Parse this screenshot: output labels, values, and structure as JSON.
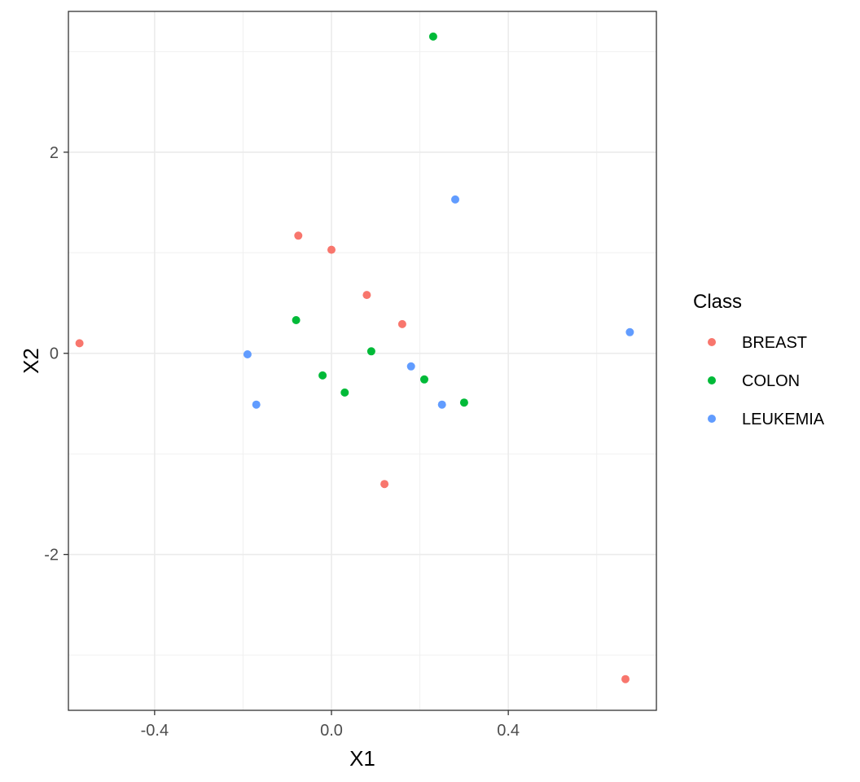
{
  "chart_data": {
    "type": "scatter",
    "title": "",
    "xlabel": "X1",
    "ylabel": "X2",
    "xlim": [
      -0.595,
      0.735
    ],
    "ylim": [
      -3.55,
      3.4
    ],
    "x_ticks": [
      -0.4,
      0.0,
      0.4
    ],
    "x_tick_labels": [
      "-0.4",
      "0.0",
      "0.4"
    ],
    "y_ticks": [
      -2,
      0,
      2
    ],
    "y_tick_labels": [
      "-2",
      "0",
      "2"
    ],
    "x_minor_ticks": [
      -0.6,
      -0.2,
      0.2,
      0.6
    ],
    "y_minor_ticks": [
      -3,
      -1,
      1,
      3
    ],
    "grid": true,
    "legend": {
      "title": "Class",
      "position": "right"
    },
    "colors": {
      "BREAST": "#F8766D",
      "COLON": "#00BA38",
      "LEUKEMIA": "#619CFF"
    },
    "series": [
      {
        "name": "BREAST",
        "points": [
          [
            -0.57,
            0.1
          ],
          [
            -0.075,
            1.17
          ],
          [
            0.0,
            1.03
          ],
          [
            0.08,
            0.58
          ],
          [
            0.16,
            0.29
          ],
          [
            0.12,
            -1.3
          ],
          [
            0.665,
            -3.24
          ]
        ]
      },
      {
        "name": "COLON",
        "points": [
          [
            0.23,
            3.15
          ],
          [
            -0.08,
            0.33
          ],
          [
            0.09,
            0.02
          ],
          [
            -0.02,
            -0.22
          ],
          [
            0.03,
            -0.39
          ],
          [
            0.21,
            -0.26
          ],
          [
            0.3,
            -0.49
          ]
        ]
      },
      {
        "name": "LEUKEMIA",
        "points": [
          [
            0.28,
            1.53
          ],
          [
            -0.19,
            -0.01
          ],
          [
            -0.17,
            -0.51
          ],
          [
            0.18,
            -0.13
          ],
          [
            0.25,
            -0.51
          ],
          [
            0.675,
            0.21
          ]
        ]
      }
    ]
  }
}
